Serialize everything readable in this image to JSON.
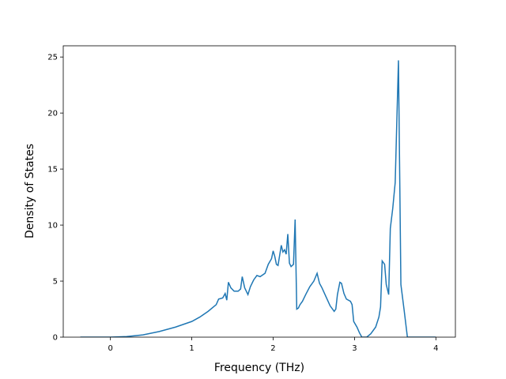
{
  "chart_data": {
    "type": "line",
    "x_label": "Frequency (THz)",
    "y_label": "Density of States",
    "xlim": [
      -0.58,
      4.24
    ],
    "ylim": [
      0,
      26
    ],
    "xticks": [
      0,
      1,
      2,
      3,
      4
    ],
    "yticks": [
      0,
      5,
      10,
      15,
      20,
      25
    ],
    "series": [
      {
        "color": "#1f77b4",
        "x": [
          -0.37,
          0,
          0.2,
          0.4,
          0.6,
          0.8,
          1.0,
          1.1,
          1.2,
          1.3,
          1.33,
          1.38,
          1.41,
          1.43,
          1.45,
          1.48,
          1.52,
          1.57,
          1.6,
          1.62,
          1.65,
          1.69,
          1.72,
          1.76,
          1.8,
          1.84,
          1.9,
          1.94,
          1.98,
          2.0,
          2.02,
          2.04,
          2.06,
          2.08,
          2.1,
          2.12,
          2.14,
          2.16,
          2.18,
          2.2,
          2.22,
          2.25,
          2.27,
          2.29,
          2.31,
          2.33,
          2.36,
          2.4,
          2.45,
          2.5,
          2.54,
          2.57,
          2.6,
          2.65,
          2.7,
          2.75,
          2.77,
          2.79,
          2.82,
          2.84,
          2.87,
          2.9,
          2.95,
          2.97,
          2.99,
          3.03,
          3.06,
          3.09,
          3.15,
          3.2,
          3.26,
          3.3,
          3.32,
          3.34,
          3.37,
          3.39,
          3.42,
          3.44,
          3.47,
          3.5,
          3.54,
          3.57,
          3.61,
          3.65,
          3.7,
          4.0
        ],
        "values": [
          0,
          0,
          0.05,
          0.2,
          0.5,
          0.9,
          1.4,
          1.8,
          2.3,
          2.9,
          3.4,
          3.5,
          3.9,
          3.3,
          4.9,
          4.4,
          4.1,
          4.1,
          4.3,
          5.4,
          4.4,
          3.8,
          4.5,
          5.1,
          5.5,
          5.4,
          5.7,
          6.5,
          7.0,
          7.7,
          7.2,
          6.5,
          6.4,
          7.3,
          8.2,
          7.6,
          7.8,
          7.4,
          9.2,
          6.6,
          6.3,
          6.5,
          10.5,
          2.5,
          2.6,
          2.9,
          3.2,
          3.8,
          4.5,
          5.0,
          5.7,
          4.8,
          4.4,
          3.6,
          2.8,
          2.3,
          2.5,
          3.8,
          4.9,
          4.8,
          3.9,
          3.4,
          3.2,
          2.9,
          1.4,
          0.9,
          0.4,
          0,
          0,
          0.3,
          0.9,
          1.8,
          2.7,
          6.8,
          6.5,
          4.7,
          3.8,
          9.7,
          11.5,
          13.8,
          24.7,
          4.7,
          2.4,
          0,
          0,
          0
        ]
      }
    ]
  }
}
